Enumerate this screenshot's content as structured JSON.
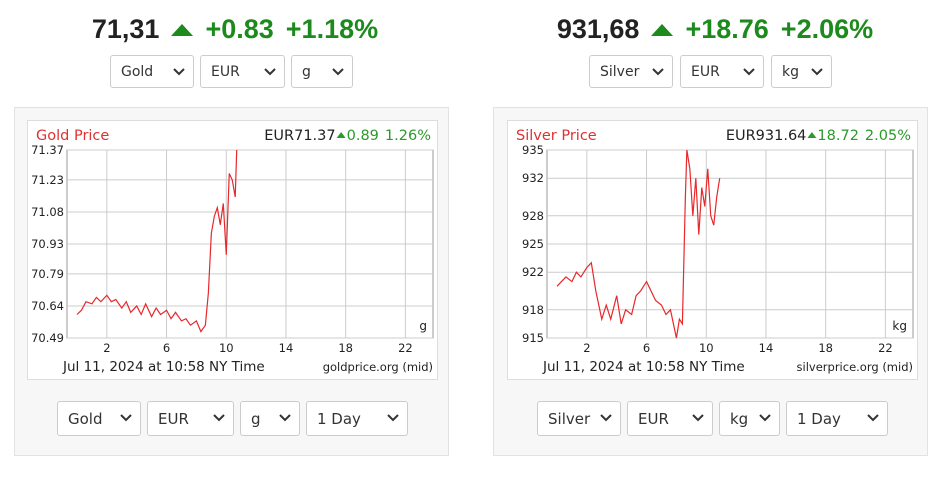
{
  "widgets": [
    {
      "price": "71,31",
      "change": "+0.83",
      "change_pct": "+1.18%",
      "selects": [
        "Gold",
        "EUR",
        "g"
      ],
      "bottom_selects": [
        "Gold",
        "EUR",
        "g",
        "1 Day"
      ]
    },
    {
      "price": "931,68",
      "change": "+18.76",
      "change_pct": "+2.06%",
      "selects": [
        "Silver",
        "EUR",
        "kg"
      ],
      "bottom_selects": [
        "Silver",
        "EUR",
        "kg",
        "1 Day"
      ]
    }
  ],
  "chart_data": [
    {
      "type": "line",
      "title": "Gold Price",
      "header_price": "EUR71.37",
      "header_change": "0.89",
      "header_pct": "1.26%",
      "unit_label": "g",
      "caption": "Jul 11, 2024 at 10:58 NY Time",
      "source": "goldprice.org (mid)",
      "color": "#e8282b",
      "grid": true,
      "x": [
        0,
        0.3,
        0.6,
        1,
        1.3,
        1.6,
        2,
        2.3,
        2.6,
        3,
        3.3,
        3.6,
        4,
        4.3,
        4.6,
        5,
        5.3,
        5.6,
        6,
        6.3,
        6.6,
        7,
        7.3,
        7.6,
        8,
        8.3,
        8.6,
        8.8,
        9,
        9.2,
        9.4,
        9.6,
        9.8,
        10,
        10.2,
        10.4,
        10.6,
        10.7
      ],
      "values": [
        70.6,
        70.62,
        70.66,
        70.65,
        70.68,
        70.66,
        70.69,
        70.66,
        70.67,
        70.63,
        70.66,
        70.61,
        70.64,
        70.6,
        70.65,
        70.59,
        70.63,
        70.6,
        70.62,
        70.58,
        70.61,
        70.57,
        70.58,
        70.55,
        70.57,
        70.52,
        70.55,
        70.7,
        70.98,
        71.06,
        71.1,
        71.02,
        71.12,
        70.88,
        71.26,
        71.23,
        71.15,
        71.37
      ],
      "xlim": [
        -0.67,
        23.85
      ],
      "xticks": [
        2,
        6,
        10,
        14,
        18,
        22
      ],
      "ylim": [
        70.49,
        71.37
      ],
      "yticks": [
        70.49,
        70.64,
        70.79,
        70.93,
        71.08,
        71.23,
        71.37
      ]
    },
    {
      "type": "line",
      "title": "Silver Price",
      "header_price": "EUR931.64",
      "header_change": "18.72",
      "header_pct": "2.05%",
      "unit_label": "kg",
      "caption": "Jul 11, 2024 at 10:58 NY Time",
      "source": "silverprice.org (mid)",
      "color": "#e8282b",
      "grid": true,
      "x": [
        0,
        0.3,
        0.6,
        1,
        1.3,
        1.6,
        2,
        2.3,
        2.6,
        3,
        3.3,
        3.6,
        4,
        4.3,
        4.6,
        5,
        5.3,
        5.6,
        6,
        6.3,
        6.6,
        7,
        7.3,
        7.6,
        8,
        8.2,
        8.4,
        8.6,
        8.7,
        8.9,
        9.1,
        9.3,
        9.5,
        9.7,
        9.9,
        10.1,
        10.3,
        10.5,
        10.7,
        10.9
      ],
      "values": [
        920.5,
        921,
        921.5,
        921,
        922,
        921.5,
        922.5,
        923,
        920,
        917,
        918.5,
        917,
        919.5,
        916.5,
        918,
        917.5,
        919.5,
        920,
        921,
        920,
        919,
        918.5,
        917.5,
        918,
        915,
        917,
        916.5,
        930,
        935,
        933,
        928,
        932,
        926,
        931,
        929,
        933,
        928,
        927,
        930,
        932
      ],
      "xlim": [
        -0.67,
        23.85
      ],
      "xticks": [
        2,
        6,
        10,
        14,
        18,
        22
      ],
      "ylim": [
        915,
        935
      ],
      "yticks": [
        915,
        918,
        922,
        925,
        928,
        932,
        935
      ]
    }
  ]
}
